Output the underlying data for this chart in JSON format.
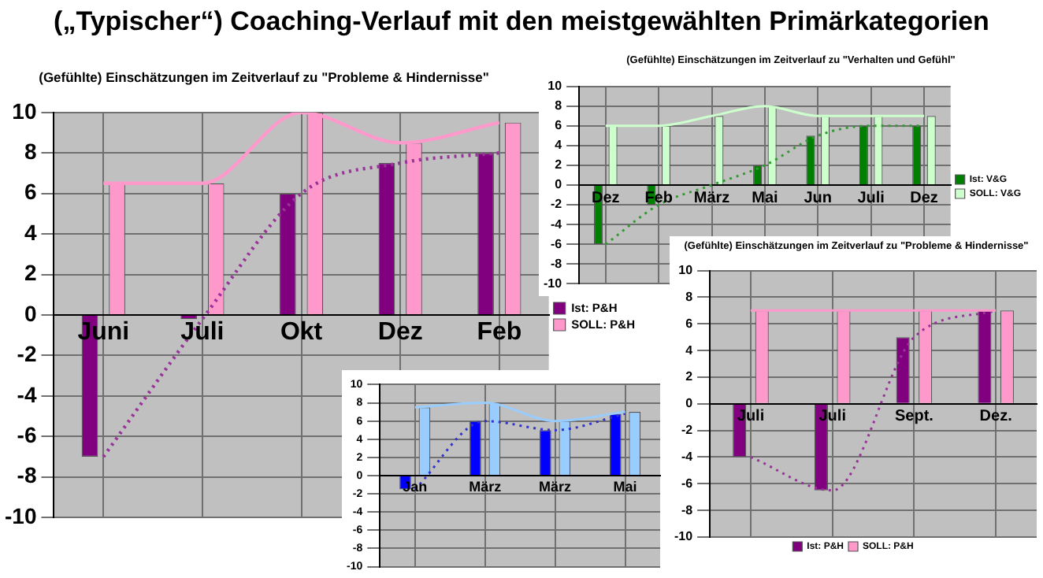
{
  "chart_data": [
    {
      "type": "bar",
      "title": "(„Typischer“) Coaching-Verlauf mit den meistgewählten Primärkategorien",
      "subtitle": "(Gefühlte) Einschätzungen im Zeitverlauf zu \"Probleme & Hindernisse\"",
      "categories": [
        "Juni",
        "Juli",
        "Okt",
        "Dez",
        "Feb"
      ],
      "series": [
        {
          "name": "Ist: P&H",
          "color": "#800080",
          "values": [
            -7,
            -0.2,
            6,
            7.5,
            8
          ]
        },
        {
          "name": "SOLL: P&H",
          "color": "#ff99cc",
          "values": [
            6.5,
            6.5,
            10,
            8.5,
            9.5
          ]
        },
        {
          "type": "line",
          "color": "#ff99cc",
          "line_style": "solid",
          "values": [
            6.5,
            6.5,
            10,
            8.5,
            9.5
          ]
        },
        {
          "type": "line",
          "color": "#993399",
          "line_style": "dotted",
          "values": [
            -7,
            -0.2,
            6,
            7.5,
            8
          ]
        }
      ],
      "ylim": [
        -10,
        10
      ],
      "yticks": [
        -10,
        -8,
        -6,
        -4,
        -2,
        0,
        2,
        4,
        6,
        8,
        10
      ],
      "grid": true,
      "legend": "right",
      "marker": "none"
    },
    {
      "type": "bar",
      "title": "(Gefühlte) Einschätzungen im Zeitverlauf zu \"Verhalten und Gefühl\"",
      "categories": [
        "Dez",
        "Feb",
        "März",
        "Mai",
        "Jun",
        "Juli",
        "Dez"
      ],
      "series": [
        {
          "name": "Ist: V&G",
          "color": "#008000",
          "values": [
            -6,
            -2,
            0,
            2,
            5,
            6,
            6
          ]
        },
        {
          "name": "SOLL: V&G",
          "color": "#ccffcc",
          "values": [
            6,
            6,
            7,
            8,
            7,
            7,
            7
          ]
        },
        {
          "type": "line",
          "color": "#ccffcc",
          "line_style": "solid",
          "values": [
            6,
            6,
            7,
            8,
            7,
            7,
            7
          ]
        },
        {
          "type": "line",
          "color": "#339933",
          "line_style": "dotted",
          "values": [
            -6,
            -2,
            0,
            2,
            5,
            6,
            6
          ]
        }
      ],
      "ylim": [
        -10,
        10
      ],
      "yticks": [
        -10,
        -8,
        -6,
        -4,
        -2,
        0,
        2,
        4,
        6,
        8,
        10
      ],
      "grid": true,
      "legend": "right",
      "marker": "none"
    },
    {
      "type": "bar",
      "title": "(Gefühlte) Einschätzungen im Zeitverlauf zu \"Probleme & Hindernisse\"",
      "categories": [
        "Juli",
        "Juli",
        "Sept.",
        "Dez."
      ],
      "series": [
        {
          "name": "Ist: P&H",
          "color": "#800080",
          "values": [
            -4,
            -6.5,
            5,
            7
          ]
        },
        {
          "name": "SOLL: P&H",
          "color": "#ff99cc",
          "values": [
            7,
            7,
            7,
            7
          ]
        },
        {
          "type": "line",
          "color": "#ff99cc",
          "line_style": "solid",
          "values": [
            7,
            7,
            7,
            7
          ]
        },
        {
          "type": "line",
          "color": "#993399",
          "line_style": "dotted",
          "values": [
            -4,
            -6.5,
            5,
            7
          ]
        }
      ],
      "ylim": [
        -10,
        10
      ],
      "yticks": [
        -10,
        -8,
        -6,
        -4,
        -2,
        0,
        2,
        4,
        6,
        8,
        10
      ],
      "grid": true,
      "legend": "bottom",
      "marker": "none"
    },
    {
      "type": "bar",
      "categories": [
        "Jan",
        "März",
        "März",
        "Mai"
      ],
      "series": [
        {
          "color": "#0000ff",
          "values": [
            -1.5,
            6,
            5,
            6.8
          ]
        },
        {
          "color": "#99ccff",
          "values": [
            7.5,
            8,
            6,
            7
          ]
        },
        {
          "type": "line",
          "color": "#99ccff",
          "line_style": "solid",
          "values": [
            7.5,
            8,
            6,
            7
          ]
        },
        {
          "type": "line",
          "color": "#3333cc",
          "line_style": "dotted",
          "values": [
            -1.5,
            6,
            5,
            6.8
          ]
        }
      ],
      "ylim": [
        -10,
        10
      ],
      "yticks": [
        -10,
        -8,
        -6,
        -4,
        -2,
        0,
        2,
        4,
        6,
        8,
        10
      ],
      "grid": true,
      "marker": "none"
    }
  ]
}
